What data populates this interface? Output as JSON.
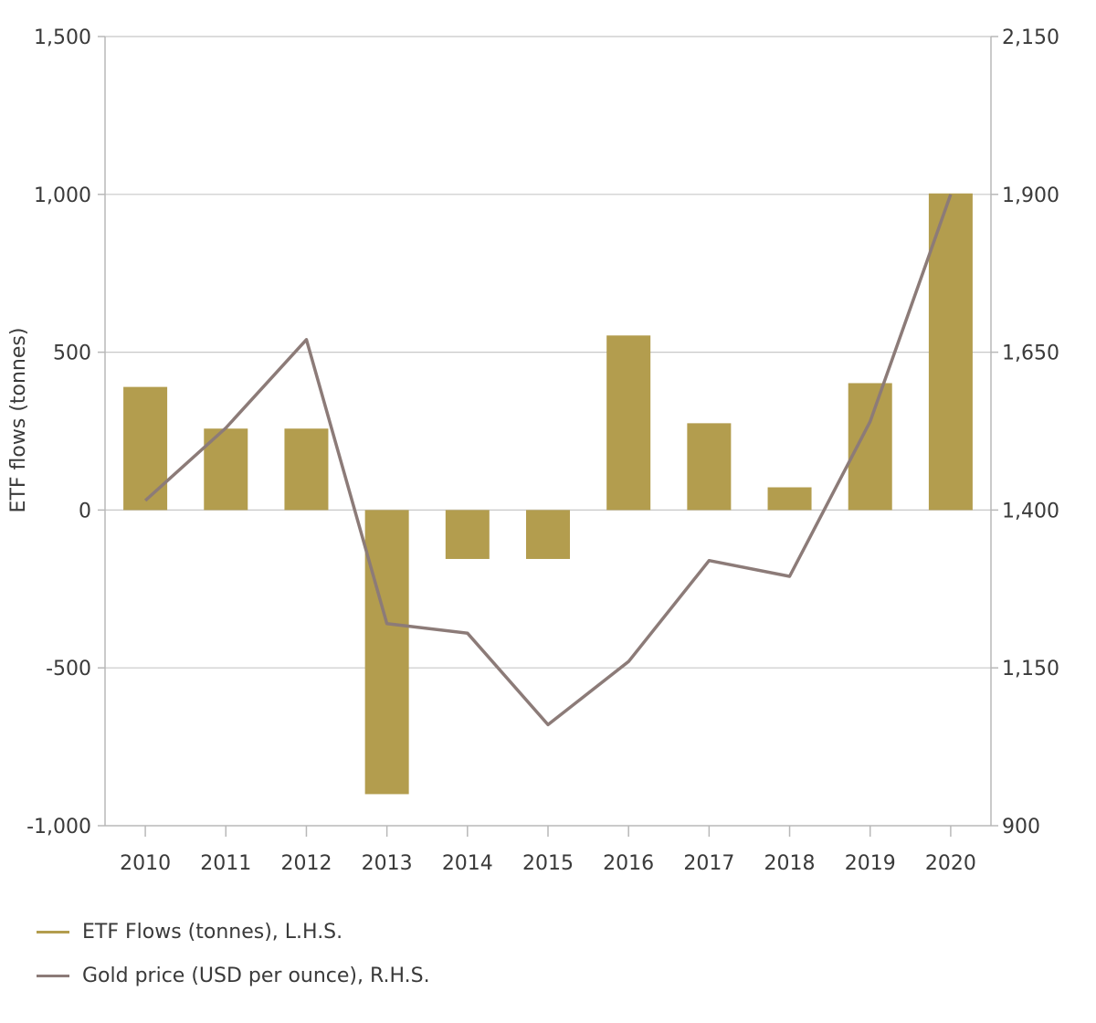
{
  "chart_data": {
    "type": "bar",
    "categories": [
      "2010",
      "2011",
      "2012",
      "2013",
      "2014",
      "2015",
      "2016",
      "2017",
      "2018",
      "2019",
      "2020"
    ],
    "series": [
      {
        "name": "ETF Flows (tonnes), L.H.S.",
        "type": "bar",
        "axis": "left",
        "color": "#b39d4e",
        "values": [
          390,
          258,
          258,
          -900,
          -155,
          -155,
          553,
          275,
          72,
          402,
          1003
        ]
      },
      {
        "name": "Gold price (USD per ounce), R.H.S.",
        "type": "line",
        "axis": "right",
        "color": "#8c7b78",
        "values": [
          1415,
          1530,
          1670,
          1220,
          1205,
          1060,
          1160,
          1320,
          1295,
          1540,
          1900
        ]
      }
    ],
    "ylabel": "ETF flows (tonnes)",
    "ylim": [
      -1000,
      1500
    ],
    "yticks": [
      1500,
      1000,
      500,
      0,
      -500,
      -1000
    ],
    "ytick_labels": [
      "1,500",
      "1,000",
      "500",
      "0",
      "-500",
      "-1,000"
    ],
    "y2lim": [
      900,
      2150
    ],
    "y2ticks": [
      2150,
      1900,
      1650,
      1400,
      1150,
      900
    ],
    "y2tick_labels": [
      "2,150",
      "1,900",
      "1,650",
      "1,400",
      "1,150",
      "900"
    ],
    "grid": true,
    "legend_position": "bottom-left"
  }
}
